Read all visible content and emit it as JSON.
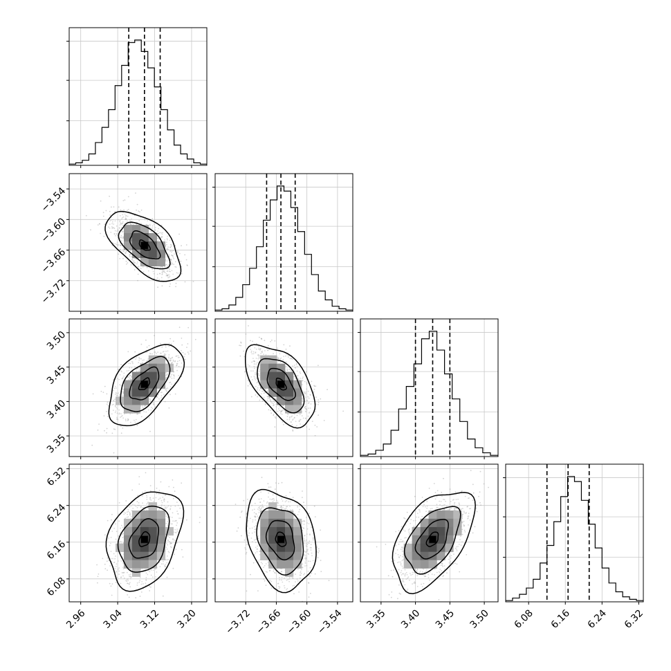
{
  "chart_data": {
    "type": "corner",
    "grid": true,
    "params": [
      {
        "range": [
          2.935,
          3.233
        ],
        "ticks": [
          2.96,
          3.04,
          3.12,
          3.2
        ],
        "tick_labels": [
          "2.96",
          "3.04",
          "3.12",
          "3.20"
        ],
        "quantiles": [
          3.064,
          3.098,
          3.132
        ],
        "hist": [
          1,
          2,
          4,
          9,
          18,
          30,
          44,
          63,
          79,
          97,
          99,
          90,
          77,
          62,
          44,
          28,
          16,
          9,
          5,
          2,
          1
        ]
      },
      {
        "range": [
          -3.78,
          -3.51
        ],
        "ticks": [
          -3.72,
          -3.66,
          -3.6,
          -3.54
        ],
        "tick_labels": [
          "−3.72",
          "−3.66",
          "−3.60",
          "−3.54"
        ],
        "quantiles": [
          -3.679,
          -3.651,
          -3.623
        ],
        "hist": [
          1,
          2,
          5,
          11,
          21,
          34,
          51,
          72,
          88,
          99,
          95,
          82,
          63,
          45,
          29,
          16,
          9,
          4,
          2,
          1
        ]
      },
      {
        "range": [
          3.32,
          3.52
        ],
        "ticks": [
          3.35,
          3.4,
          3.45,
          3.5
        ],
        "tick_labels": [
          "3.35",
          "3.40",
          "3.45",
          "3.50"
        ],
        "quantiles": [
          3.4,
          3.425,
          3.45
        ],
        "hist": [
          1,
          2,
          5,
          10,
          21,
          38,
          56,
          74,
          94,
          100,
          85,
          66,
          46,
          28,
          14,
          7,
          3,
          1
        ]
      },
      {
        "range": [
          6.03,
          6.33
        ],
        "ticks": [
          6.08,
          6.16,
          6.24,
          6.32
        ],
        "tick_labels": [
          "6.08",
          "6.16",
          "6.24",
          "6.32"
        ],
        "quantiles": [
          6.12,
          6.166,
          6.212
        ],
        "hist": [
          1,
          3,
          6,
          11,
          18,
          31,
          45,
          64,
          84,
          100,
          96,
          81,
          62,
          43,
          27,
          15,
          8,
          4,
          2,
          1
        ]
      }
    ],
    "correlations": [
      [
        1,
        -0.58,
        0.55,
        0.32
      ],
      [
        -0.58,
        1,
        -0.55,
        -0.25
      ],
      [
        0.55,
        -0.55,
        1,
        0.5
      ],
      [
        0.32,
        -0.25,
        0.5,
        1
      ]
    ],
    "sigmas": [
      0.0335,
      0.0285,
      0.0245,
      0.045
    ],
    "means": [
      3.098,
      -3.651,
      3.425,
      6.166
    ]
  }
}
